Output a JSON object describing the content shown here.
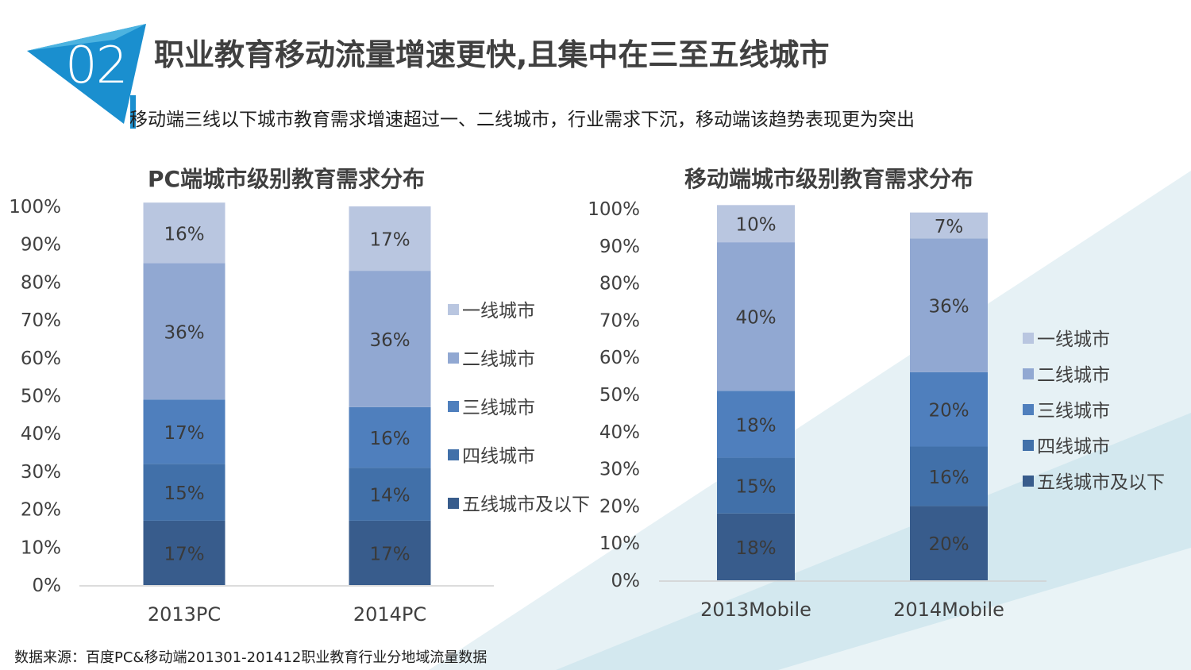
{
  "header": {
    "badge": "02",
    "title": "职业教育移动流量增速更快,且集中在三至五线城市",
    "subtitle": "移动端三线以下城市教育需求增速超过一、二线城市，行业需求下沉，移动端该趋势表现更为突出"
  },
  "source": "数据来源：百度PC&移动端201301-201412职业教育行业分地域流量数据",
  "colors": {
    "tier1": "#b9c6e0",
    "tier2": "#91a8d2",
    "tier3": "#4f7fbd",
    "tier4": "#4170a9",
    "tier5": "#385c8c",
    "accent": "#1a8fcf"
  },
  "chart_data": [
    {
      "type": "stacked-bar",
      "title": "PC端城市级别教育需求分布",
      "categories": [
        "2013PC",
        "2014PC"
      ],
      "ylim": [
        0,
        100
      ],
      "ytick_labels": [
        "0%",
        "10%",
        "20%",
        "30%",
        "40%",
        "50%",
        "60%",
        "70%",
        "80%",
        "90%",
        "100%"
      ],
      "legend_position": "right",
      "series": [
        {
          "name": "五线城市及以下",
          "color": "#385c8c",
          "values": [
            17,
            17
          ],
          "labels": [
            "17%",
            "17%"
          ]
        },
        {
          "name": "四线城市",
          "color": "#4170a9",
          "values": [
            15,
            14
          ],
          "labels": [
            "15%",
            "14%"
          ]
        },
        {
          "name": "三线城市",
          "color": "#4f7fbd",
          "values": [
            17,
            16
          ],
          "labels": [
            "17%",
            "16%"
          ]
        },
        {
          "name": "二线城市",
          "color": "#91a8d2",
          "values": [
            36,
            36
          ],
          "labels": [
            "36%",
            "36%"
          ]
        },
        {
          "name": "一线城市",
          "color": "#b9c6e0",
          "values": [
            16,
            17
          ],
          "labels": [
            "16%",
            "17%"
          ]
        }
      ]
    },
    {
      "type": "stacked-bar",
      "title": "移动端城市级别教育需求分布",
      "categories": [
        "2013Mobile",
        "2014Mobile"
      ],
      "ylim": [
        0,
        100
      ],
      "ytick_labels": [
        "0%",
        "10%",
        "20%",
        "30%",
        "40%",
        "50%",
        "60%",
        "70%",
        "80%",
        "90%",
        "100%"
      ],
      "legend_position": "right",
      "series": [
        {
          "name": "五线城市及以下",
          "color": "#385c8c",
          "values": [
            18,
            20
          ],
          "labels": [
            "18%",
            "20%"
          ]
        },
        {
          "name": "四线城市",
          "color": "#4170a9",
          "values": [
            15,
            16
          ],
          "labels": [
            "15%",
            "16%"
          ]
        },
        {
          "name": "三线城市",
          "color": "#4f7fbd",
          "values": [
            18,
            20
          ],
          "labels": [
            "18%",
            "20%"
          ]
        },
        {
          "name": "二线城市",
          "color": "#91a8d2",
          "values": [
            40,
            36
          ],
          "labels": [
            "40%",
            "36%"
          ]
        },
        {
          "name": "一线城市",
          "color": "#b9c6e0",
          "values": [
            10,
            7
          ],
          "labels": [
            "10%",
            "7%"
          ]
        }
      ]
    }
  ]
}
